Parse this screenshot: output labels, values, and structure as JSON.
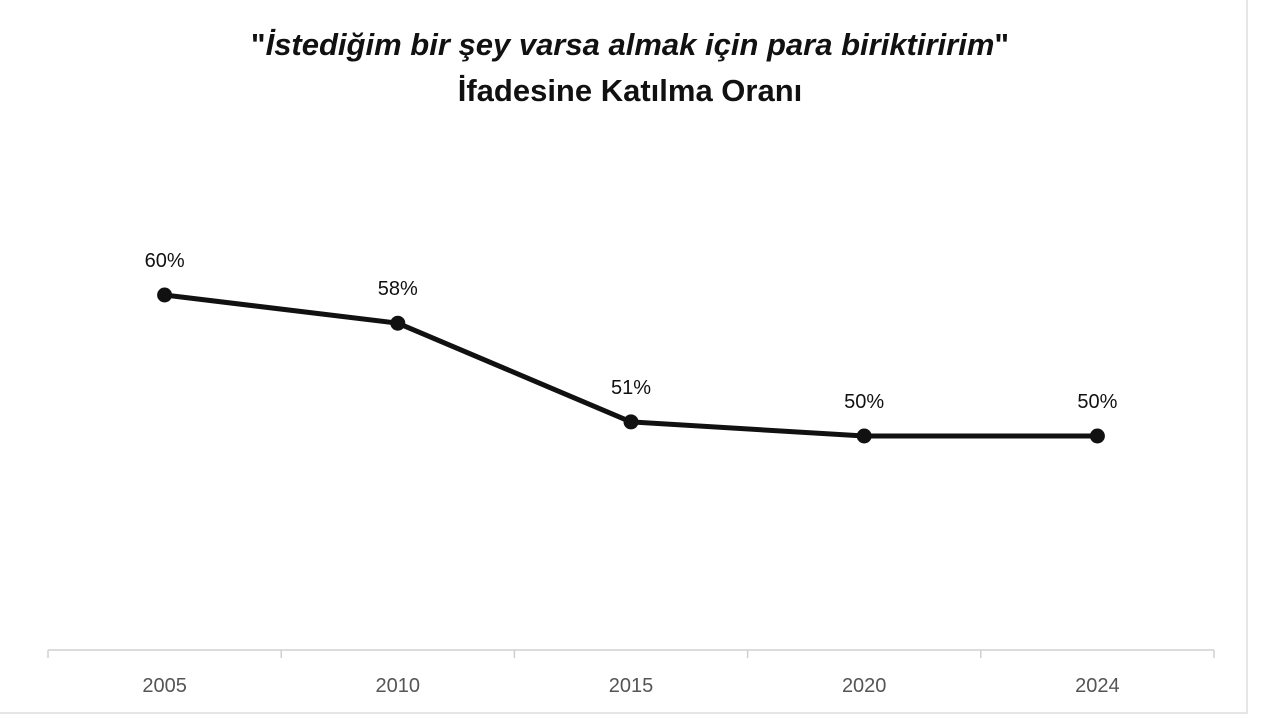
{
  "chart_data": {
    "type": "line",
    "title_line1_quote_open": "\"",
    "title_line1_text": "İstediğim bir şey varsa almak için para biriktiririm",
    "title_line1_quote_close": "\"",
    "title_line2": "İfadesine Katılma Oranı",
    "xlabel": "",
    "ylabel": "",
    "categories": [
      "2005",
      "2010",
      "2015",
      "2020",
      "2024"
    ],
    "series": [
      {
        "values": [
          60,
          58,
          51,
          50,
          50
        ],
        "data_labels": [
          "60%",
          "58%",
          "51%",
          "50%",
          "50%"
        ],
        "color": "#111111"
      }
    ],
    "y_unit": "%",
    "grid": false,
    "legend": "none"
  }
}
